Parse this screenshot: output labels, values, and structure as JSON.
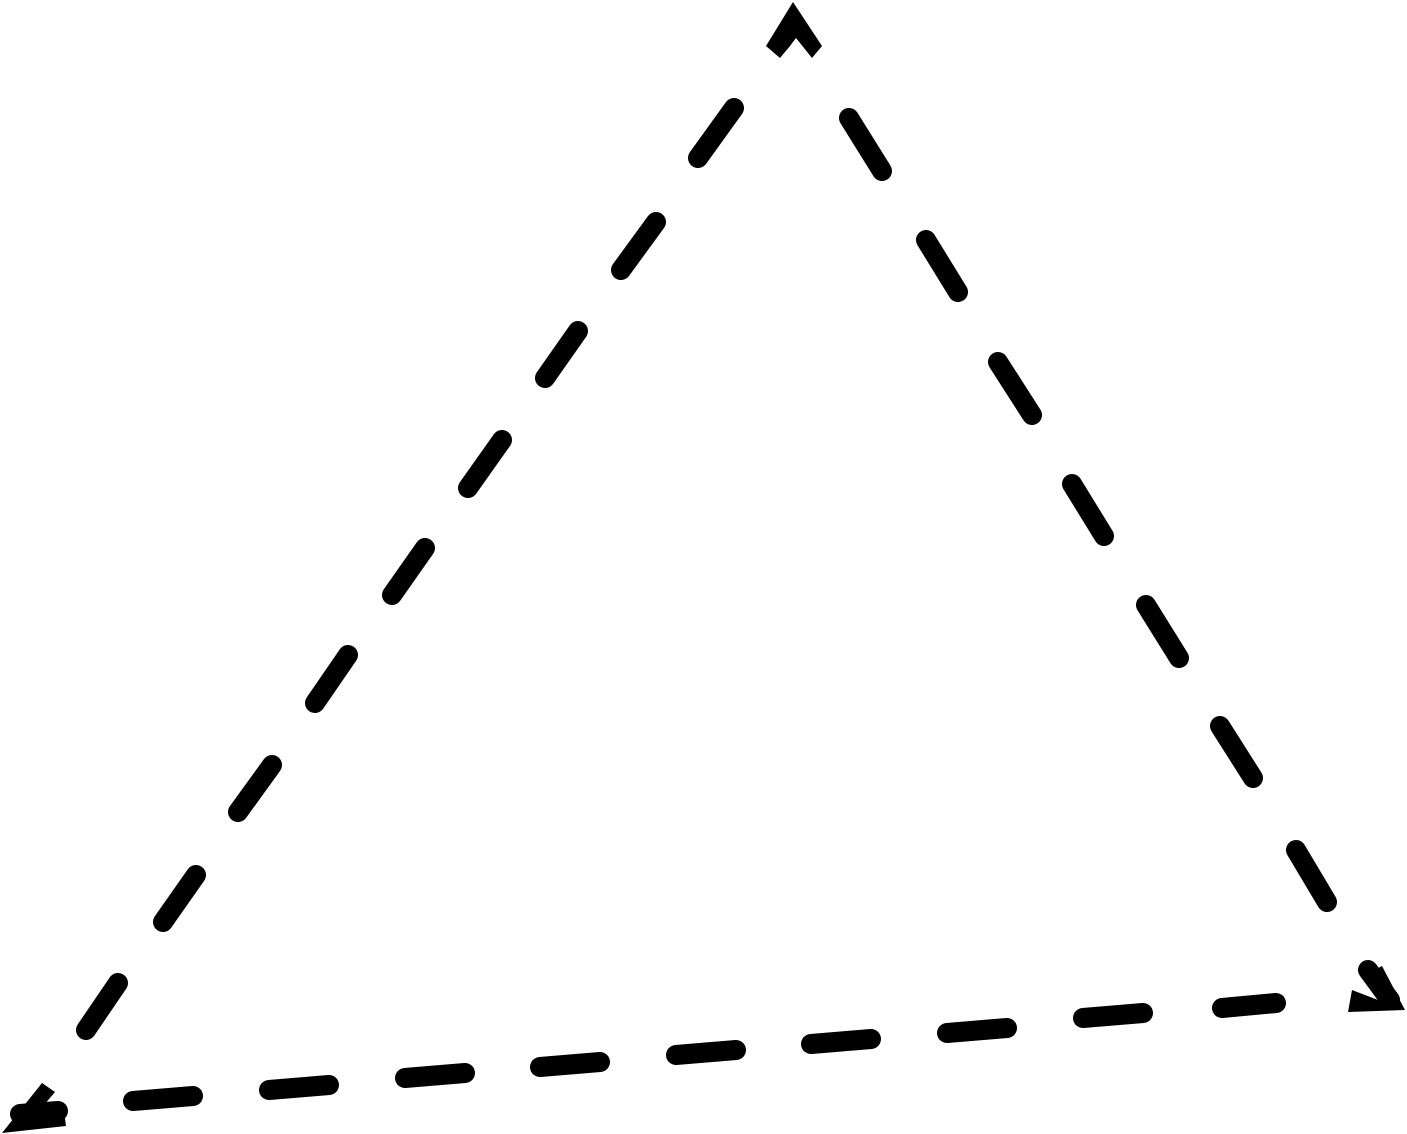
{
  "diagram": {
    "shape": "triangle",
    "outline_style": "dashed",
    "stroke_color": "#000000",
    "background_color": "#ffffff",
    "corner_markers": [
      "arrowhead",
      "arrowhead",
      "arrowhead"
    ]
  }
}
